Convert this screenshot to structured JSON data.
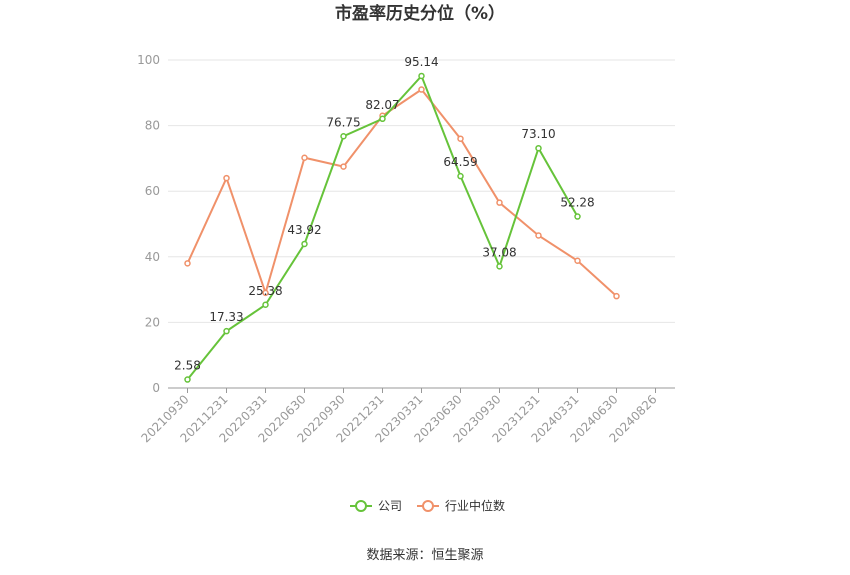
{
  "chart_data": {
    "type": "line",
    "title": "市盈率历史分位（%）",
    "categories": [
      "20210930",
      "20211231",
      "20220331",
      "20220630",
      "20220930",
      "20221231",
      "20230331",
      "20230630",
      "20230930",
      "20231231",
      "20240331",
      "20240630",
      "20240826"
    ],
    "ylim": [
      0,
      100
    ],
    "yticks": [
      0,
      20,
      40,
      60,
      80,
      100
    ],
    "grid": true,
    "legend_position": "bottom",
    "series": [
      {
        "name": "公司",
        "color": "#66c33a",
        "values": [
          2.58,
          17.33,
          25.38,
          43.92,
          76.75,
          82.07,
          95.14,
          64.59,
          37.08,
          73.1,
          52.28,
          null,
          null
        ],
        "labels": [
          "2.58",
          "17.33",
          "25.38",
          "43.92",
          "76.75",
          "82.07",
          "95.14",
          "64.59",
          "37.08",
          "73.10",
          "52.28",
          null,
          null
        ]
      },
      {
        "name": "行业中位数",
        "color": "#f0916a",
        "values": [
          38,
          64,
          29,
          70.2,
          67.5,
          83,
          91,
          76,
          56.5,
          46.5,
          38.8,
          28,
          null
        ]
      }
    ]
  },
  "source_text": "数据来源：恒生聚源"
}
